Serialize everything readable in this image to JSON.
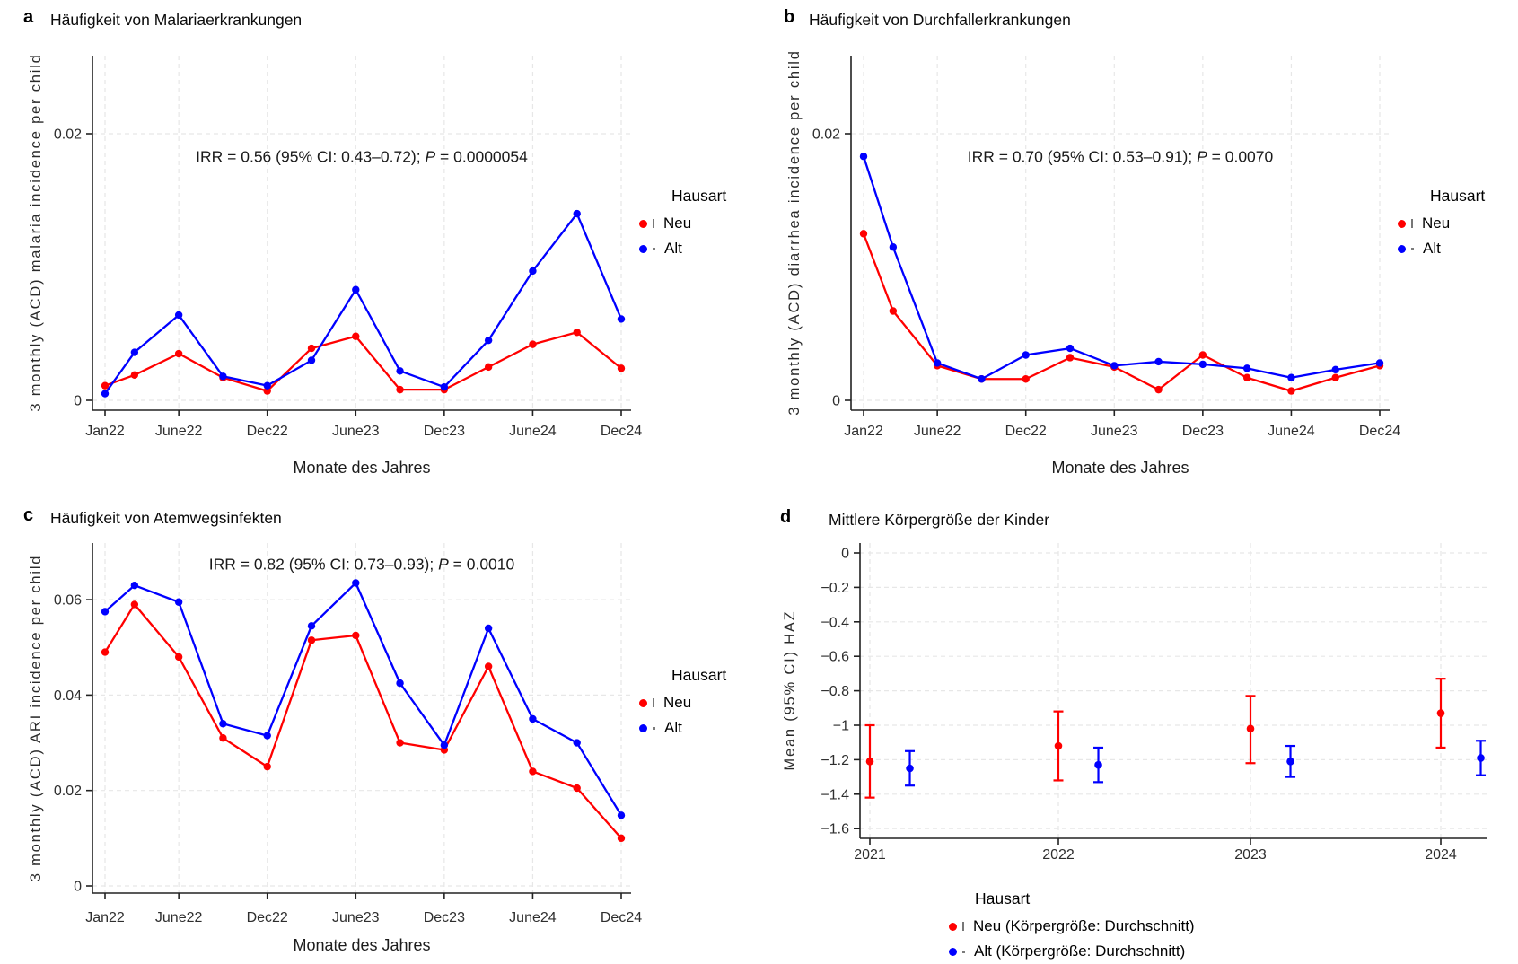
{
  "colors": {
    "neu": "#ff0000",
    "alt": "#0000ff",
    "grid": "#e7e7e7",
    "axis": "#222222",
    "tick_text": "#2e2e2e"
  },
  "chart_data": [
    {
      "id": "a",
      "type": "line",
      "panel_label": "a",
      "title": "Häufigkeit von Malariaerkrankungen",
      "ylabel": "3 monthly (ACD) malaria incidence per child",
      "xlabel": "Monate des Jahres",
      "annotation": {
        "pre": "IRR = 0.56 (95% CI: 0.43–0.72); ",
        "italic": "P",
        "post": " = 0.0000054"
      },
      "x_months": [
        0,
        2,
        5,
        8,
        11,
        14,
        17,
        20,
        23,
        26,
        29,
        32,
        35
      ],
      "x_tick_months": [
        0,
        5,
        11,
        17,
        23,
        29,
        35
      ],
      "x_tick_labels": [
        "Jan22",
        "June22",
        "Dec22",
        "June23",
        "Dec23",
        "June24",
        "Dec24"
      ],
      "y_ticks": [
        0,
        0.02
      ],
      "y_tick_labels": [
        "0",
        "0.02"
      ],
      "ylim": [
        0,
        0.026
      ],
      "grid": true,
      "legend_position": "right",
      "legend": {
        "title": "Hausart",
        "entries": [
          {
            "label": "Neu",
            "color": "#ff0000"
          },
          {
            "label": "Alt",
            "color": "#0000ff"
          }
        ]
      },
      "series": [
        {
          "name": "Neu",
          "color": "#ff0000",
          "values": [
            0.0011,
            0.0019,
            0.0035,
            0.0017,
            0.0007,
            0.0039,
            0.0048,
            0.0008,
            0.0008,
            0.0025,
            0.0042,
            0.0051,
            0.0024
          ]
        },
        {
          "name": "Alt",
          "color": "#0000ff",
          "values": [
            0.0005,
            0.0036,
            0.0064,
            0.0018,
            0.0011,
            0.003,
            0.0083,
            0.0022,
            0.001,
            0.0045,
            0.0097,
            0.014,
            0.0061
          ]
        }
      ]
    },
    {
      "id": "b",
      "type": "line",
      "panel_label": "b",
      "title": "Häufigkeit von Durchfallerkrankungen",
      "ylabel": "3 monthly (ACD) diarrhea incidence per child",
      "xlabel": "Monate des Jahres",
      "annotation": {
        "pre": "IRR = 0.70 (95% CI: 0.53–0.91); ",
        "italic": "P",
        "post": " = 0.0070"
      },
      "x_months": [
        0,
        2,
        5,
        8,
        11,
        14,
        17,
        20,
        23,
        26,
        29,
        32,
        35
      ],
      "x_tick_months": [
        0,
        5,
        11,
        17,
        23,
        29,
        35
      ],
      "x_tick_labels": [
        "Jan22",
        "June22",
        "Dec22",
        "June23",
        "Dec23",
        "June24",
        "Dec24"
      ],
      "y_ticks": [
        0,
        0.02
      ],
      "y_tick_labels": [
        "0",
        "0.02"
      ],
      "ylim": [
        0,
        0.026
      ],
      "grid": true,
      "legend_position": "right",
      "legend": {
        "title": "Hausart",
        "entries": [
          {
            "label": "Neu",
            "color": "#ff0000"
          },
          {
            "label": "Alt",
            "color": "#0000ff"
          }
        ]
      },
      "series": [
        {
          "name": "Neu",
          "color": "#ff0000",
          "values": [
            0.0125,
            0.0067,
            0.0026,
            0.0016,
            0.0016,
            0.0032,
            0.0025,
            0.0008,
            0.0034,
            0.0017,
            0.0007,
            0.0017,
            0.0026
          ]
        },
        {
          "name": "Alt",
          "color": "#0000ff",
          "values": [
            0.0183,
            0.0115,
            0.0028,
            0.0016,
            0.0034,
            0.0039,
            0.0026,
            0.0029,
            0.0027,
            0.0024,
            0.0017,
            0.0023,
            0.0028
          ]
        }
      ]
    },
    {
      "id": "c",
      "type": "line",
      "panel_label": "c",
      "title": "Häufigkeit von Atemwegsinfekten",
      "ylabel": "3 monthly (ACD) ARI incidence per child",
      "xlabel": "Monate des Jahres",
      "annotation": {
        "pre": "IRR = 0.82 (95% CI: 0.73–0.93); ",
        "italic": "P",
        "post": " = 0.0010"
      },
      "x_months": [
        0,
        2,
        5,
        8,
        11,
        14,
        17,
        20,
        23,
        26,
        29,
        32,
        35
      ],
      "x_tick_months": [
        0,
        5,
        11,
        17,
        23,
        29,
        35
      ],
      "x_tick_labels": [
        "Jan22",
        "June22",
        "Dec22",
        "June23",
        "Dec23",
        "June24",
        "Dec24"
      ],
      "y_ticks": [
        0,
        0.02,
        0.04,
        0.06
      ],
      "y_tick_labels": [
        "0",
        "0.02",
        "0.04",
        "0.06"
      ],
      "ylim": [
        0,
        0.072
      ],
      "grid": true,
      "legend_position": "right",
      "legend": {
        "title": "Hausart",
        "entries": [
          {
            "label": "Neu",
            "color": "#ff0000"
          },
          {
            "label": "Alt",
            "color": "#0000ff"
          }
        ]
      },
      "series": [
        {
          "name": "Neu",
          "color": "#ff0000",
          "values": [
            0.049,
            0.059,
            0.048,
            0.031,
            0.025,
            0.0515,
            0.0525,
            0.03,
            0.0285,
            0.046,
            0.024,
            0.0205,
            0.01
          ]
        },
        {
          "name": "Alt",
          "color": "#0000ff",
          "values": [
            0.0575,
            0.063,
            0.0595,
            0.034,
            0.0315,
            0.0545,
            0.0635,
            0.0425,
            0.0295,
            0.054,
            0.035,
            0.03,
            0.0148
          ]
        }
      ]
    },
    {
      "id": "d",
      "type": "errorbar",
      "panel_label": "d",
      "title": "Mittlere Körpergröße der Kinder",
      "ylabel": "Mean (95% CI) HAZ",
      "x_tick_labels": [
        "2021",
        "2022",
        "2023",
        "2024"
      ],
      "x_ticks": [
        2021,
        2022,
        2023,
        2024
      ],
      "y_ticks": [
        0,
        -0.2,
        -0.4,
        -0.6,
        -0.8,
        -1,
        -1.2,
        -1.4,
        -1.6
      ],
      "y_tick_labels": [
        "0",
        "−0.2",
        "−0.4",
        "−0.6",
        "−0.8",
        "−1",
        "−1.2",
        "−1.4",
        "−1.6"
      ],
      "ylim": [
        -1.66,
        0.06
      ],
      "grid": true,
      "legend_position": "bottom",
      "legend": {
        "title": "Hausart",
        "entries": [
          {
            "label": "Neu (Körpergröße: Durchschnitt)",
            "color": "#ff0000"
          },
          {
            "label": "Alt (Körpergröße: Durchschnitt)",
            "color": "#0000ff"
          }
        ]
      },
      "series": [
        {
          "name": "Neu (Körpergröße: Durchschnitt)",
          "color": "#ff0000",
          "offset_years": 0,
          "points": [
            {
              "x": 2021,
              "mean": -1.21,
              "lo": -1.42,
              "hi": -1.0
            },
            {
              "x": 2022,
              "mean": -1.12,
              "lo": -1.32,
              "hi": -0.92
            },
            {
              "x": 2023,
              "mean": -1.02,
              "lo": -1.22,
              "hi": -0.83
            },
            {
              "x": 2024,
              "mean": -0.93,
              "lo": -1.13,
              "hi": -0.73
            }
          ]
        },
        {
          "name": "Alt (Körpergröße: Durchschnitt)",
          "color": "#0000ff",
          "offset_years": 0.21,
          "points": [
            {
              "x": 2021,
              "mean": -1.25,
              "lo": -1.35,
              "hi": -1.15
            },
            {
              "x": 2022,
              "mean": -1.23,
              "lo": -1.33,
              "hi": -1.13
            },
            {
              "x": 2023,
              "mean": -1.21,
              "lo": -1.3,
              "hi": -1.12
            },
            {
              "x": 2024,
              "mean": -1.19,
              "lo": -1.29,
              "hi": -1.09
            }
          ]
        }
      ]
    }
  ]
}
